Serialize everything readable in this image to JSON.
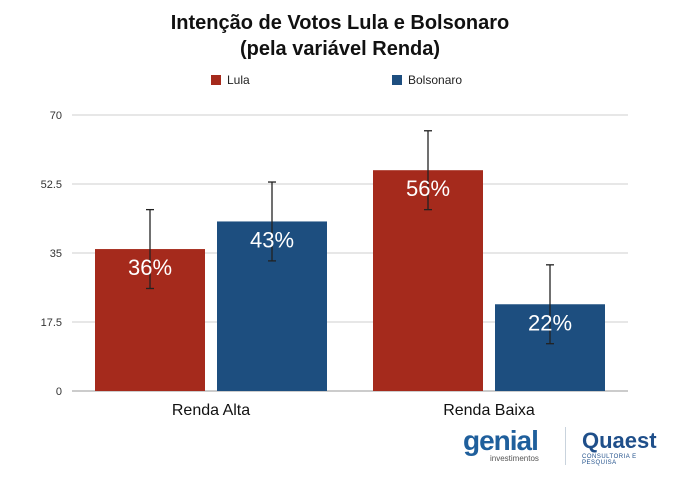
{
  "chart_data": {
    "type": "bar",
    "title": "Intenção de Votos Lula e Bolsonaro",
    "subtitle": "(pela variável Renda)",
    "categories": [
      "Renda Alta",
      "Renda Baixa"
    ],
    "series": [
      {
        "name": "Lula",
        "color": "#a52a1c",
        "values": [
          36,
          56
        ],
        "labels": [
          "36%",
          "56%"
        ],
        "error_low": [
          26,
          46
        ],
        "error_high": [
          46,
          66
        ]
      },
      {
        "name": "Bolsonaro",
        "color": "#1d4e7f",
        "values": [
          43,
          22
        ],
        "labels": [
          "43%",
          "22%"
        ],
        "error_low": [
          33,
          12
        ],
        "error_high": [
          53,
          32
        ]
      }
    ],
    "ylim": [
      0,
      70
    ],
    "yticks": [
      0,
      17.5,
      35,
      52.5,
      70
    ],
    "ytick_labels": [
      "0",
      "17.5",
      "35",
      "52.5",
      "70"
    ],
    "grid": true,
    "legend": "top-center"
  },
  "logos": {
    "genial": "genial",
    "genial_sub": "investimentos",
    "quaest": "Quaest",
    "quaest_sub": "CONSULTORIA E PESQUISA"
  }
}
